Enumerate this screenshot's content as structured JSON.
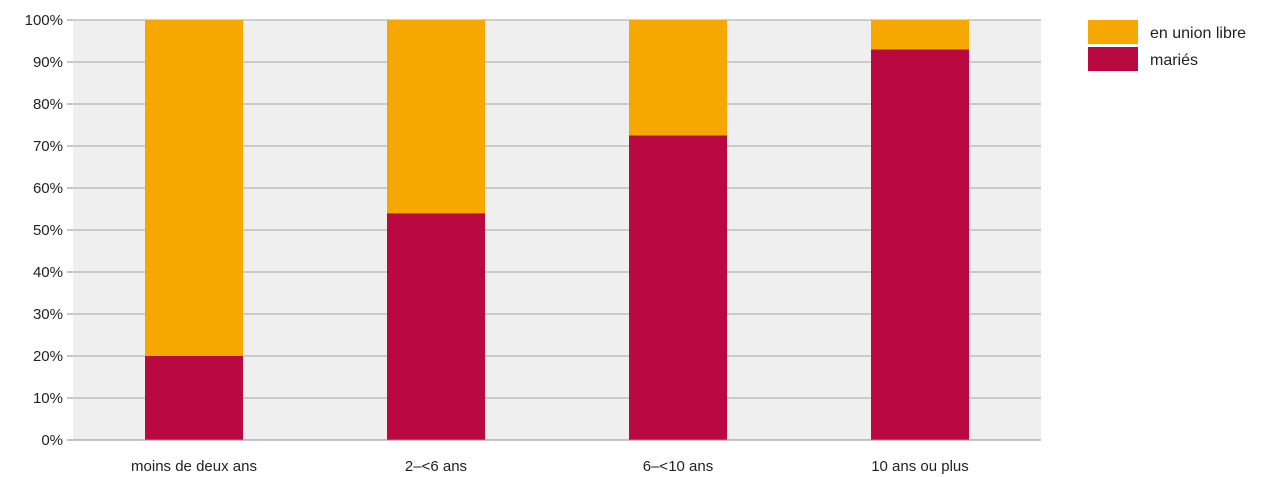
{
  "chart_data": {
    "type": "bar",
    "stacked": true,
    "title": "",
    "xlabel": "",
    "ylabel": "",
    "ylim": [
      0,
      100
    ],
    "yticks": [
      "0%",
      "10%",
      "20%",
      "30%",
      "40%",
      "50%",
      "60%",
      "70%",
      "80%",
      "90%",
      "100%"
    ],
    "categories": [
      "moins de deux ans",
      "2–<6 ans",
      "6–<10 ans",
      "10 ans ou plus"
    ],
    "series": [
      {
        "name": "mariés",
        "color": "#BA0840",
        "values": [
          20,
          54,
          72.5,
          93
        ]
      },
      {
        "name": "en union libre",
        "color": "#F7A800",
        "values": [
          80,
          46,
          27.5,
          7
        ]
      }
    ],
    "legend": {
      "position": "top-right",
      "order": [
        "en union libre",
        "mariés"
      ]
    },
    "grid": true,
    "plot_background": "#EFEFEF",
    "grid_color": "#A6A6A6"
  }
}
